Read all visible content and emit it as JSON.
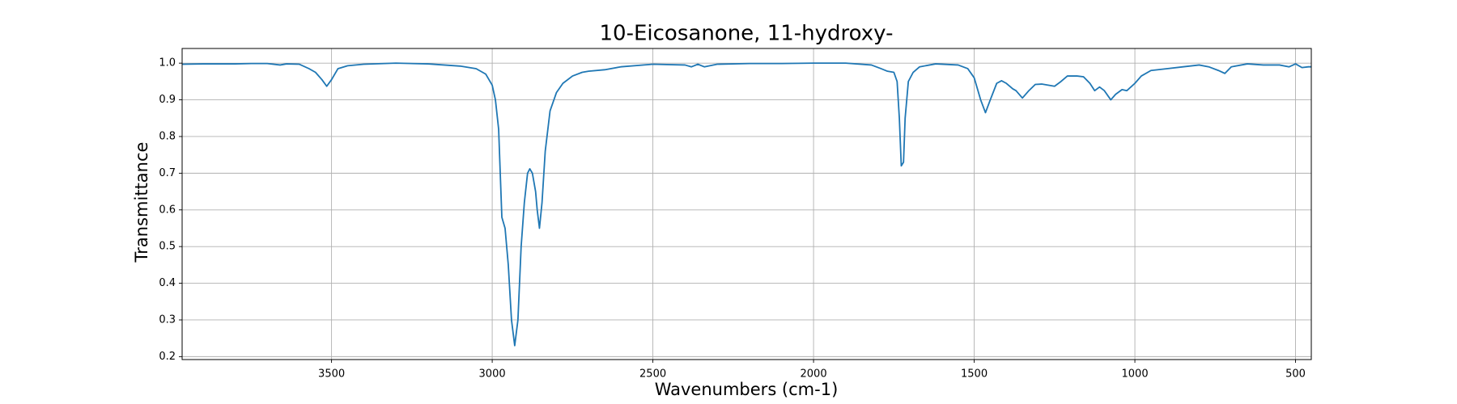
{
  "chart_data": {
    "type": "line",
    "title": "10-Eicosanone, 11-hydroxy-",
    "x_label": "Wavenumbers (cm-1)",
    "y_label": "Transmittance",
    "color": "#1f77b4",
    "grid": true,
    "xlim": [
      3965,
      451
    ],
    "ylim": [
      0.192,
      1.04
    ],
    "xticks": [
      3500,
      3000,
      2500,
      2000,
      1500,
      1000,
      500
    ],
    "yticks": [
      0.2,
      0.3,
      0.4,
      0.5,
      0.6,
      0.7,
      0.8,
      0.9,
      {
        "value": 1,
        "label": "1.0"
      }
    ],
    "x": [
      3965,
      3900,
      3800,
      3750,
      3700,
      3660,
      3640,
      3600,
      3570,
      3550,
      3530,
      3515,
      3500,
      3480,
      3450,
      3400,
      3300,
      3200,
      3100,
      3050,
      3020,
      3000,
      2990,
      2980,
      2975,
      2970,
      2960,
      2950,
      2940,
      2930,
      2920,
      2910,
      2900,
      2890,
      2883,
      2875,
      2865,
      2860,
      2853,
      2845,
      2835,
      2820,
      2800,
      2780,
      2750,
      2720,
      2700,
      2650,
      2600,
      2500,
      2400,
      2380,
      2360,
      2340,
      2300,
      2200,
      2100,
      2000,
      1900,
      1820,
      1790,
      1770,
      1750,
      1740,
      1733,
      1727,
      1720,
      1715,
      1705,
      1690,
      1670,
      1620,
      1550,
      1520,
      1500,
      1480,
      1465,
      1450,
      1430,
      1415,
      1400,
      1380,
      1370,
      1350,
      1330,
      1310,
      1290,
      1270,
      1250,
      1230,
      1210,
      1180,
      1160,
      1140,
      1125,
      1110,
      1095,
      1075,
      1060,
      1040,
      1025,
      1000,
      980,
      950,
      900,
      850,
      800,
      770,
      740,
      720,
      700,
      650,
      600,
      550,
      520,
      500,
      480,
      460,
      451
    ],
    "values": [
      0.997,
      0.998,
      0.998,
      0.999,
      0.999,
      0.995,
      0.998,
      0.997,
      0.985,
      0.975,
      0.955,
      0.937,
      0.955,
      0.985,
      0.993,
      0.997,
      1.0,
      0.998,
      0.992,
      0.985,
      0.97,
      0.94,
      0.9,
      0.82,
      0.7,
      0.58,
      0.55,
      0.45,
      0.3,
      0.23,
      0.3,
      0.5,
      0.62,
      0.7,
      0.712,
      0.7,
      0.65,
      0.6,
      0.55,
      0.62,
      0.76,
      0.87,
      0.92,
      0.945,
      0.965,
      0.975,
      0.978,
      0.982,
      0.99,
      0.997,
      0.995,
      0.99,
      0.997,
      0.99,
      0.997,
      0.999,
      0.999,
      1.0,
      1.0,
      0.995,
      0.985,
      0.978,
      0.975,
      0.95,
      0.85,
      0.72,
      0.73,
      0.85,
      0.95,
      0.975,
      0.99,
      0.998,
      0.995,
      0.985,
      0.96,
      0.9,
      0.865,
      0.9,
      0.945,
      0.952,
      0.945,
      0.93,
      0.925,
      0.905,
      0.925,
      0.942,
      0.943,
      0.94,
      0.937,
      0.95,
      0.965,
      0.965,
      0.963,
      0.945,
      0.925,
      0.935,
      0.925,
      0.9,
      0.915,
      0.928,
      0.925,
      0.945,
      0.965,
      0.98,
      0.985,
      0.99,
      0.995,
      0.99,
      0.98,
      0.972,
      0.99,
      0.998,
      0.995,
      0.995,
      0.99,
      0.998,
      0.988,
      0.99,
      0.99
    ]
  }
}
